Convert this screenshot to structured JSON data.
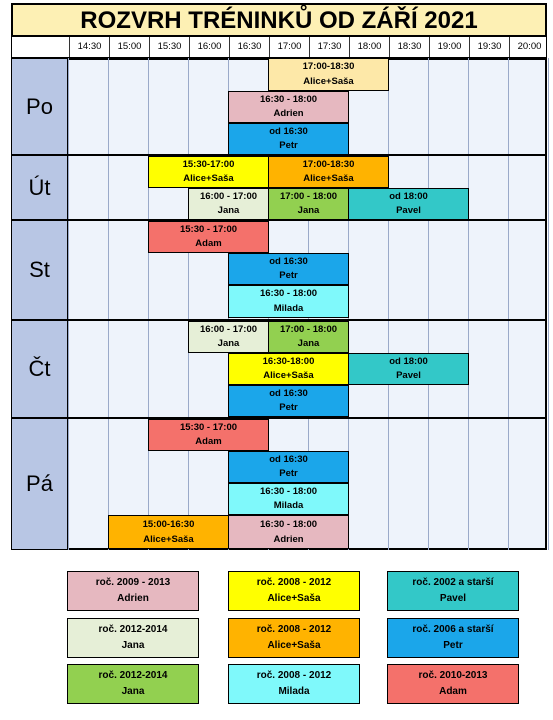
{
  "title": "ROZVRH TRÉNINKŮ OD ZÁŘÍ 2021",
  "times": [
    "14:30",
    "15:00",
    "15:30",
    "16:00",
    "16:30",
    "17:00",
    "17:30",
    "18:00",
    "18:30",
    "19:00",
    "19:30",
    "20:00"
  ],
  "days": [
    {
      "name": "Po",
      "blocks": [
        {
          "time": "17:00-18:30",
          "who": "Alice+Saša",
          "color": "#fde8a8"
        },
        {
          "time": "16:30 - 18:00",
          "who": "Adrien",
          "color": "#e6b8c0"
        },
        {
          "time": "od 16:30",
          "who": "Petr",
          "color": "#1ba6ea"
        }
      ]
    },
    {
      "name": "Út",
      "blocks": [
        {
          "time": "15:30-17:00",
          "who": "Alice+Saša",
          "color": "#ffff00"
        },
        {
          "time": "17:00-18:30",
          "who": "Alice+Saša",
          "color": "#ffb300"
        },
        {
          "time": "16:00 - 17:00",
          "who": "Jana",
          "color": "#e6efd7"
        },
        {
          "time": "17:00 - 18:00",
          "who": "Jana",
          "color": "#92d050"
        },
        {
          "time": "od 18:00",
          "who": "Pavel",
          "color": "#33c8c8"
        }
      ]
    },
    {
      "name": "St",
      "blocks": [
        {
          "time": "15:30 - 17:00",
          "who": "Adam",
          "color": "#f4716b"
        },
        {
          "time": "od 16:30",
          "who": "Petr",
          "color": "#1ba6ea"
        },
        {
          "time": "16:30 - 18:00",
          "who": "Milada",
          "color": "#7ff9fb"
        }
      ]
    },
    {
      "name": "Čt",
      "blocks": [
        {
          "time": "16:00 - 17:00",
          "who": "Jana",
          "color": "#e6efd7"
        },
        {
          "time": "17:00 - 18:00",
          "who": "Jana",
          "color": "#92d050"
        },
        {
          "time": "16:30-18:00",
          "who": "Alice+Saša",
          "color": "#ffff00"
        },
        {
          "time": "od 18:00",
          "who": "Pavel",
          "color": "#33c8c8"
        },
        {
          "time": "od 16:30",
          "who": "Petr",
          "color": "#1ba6ea"
        }
      ]
    },
    {
      "name": "Pá",
      "blocks": [
        {
          "time": "15:30 - 17:00",
          "who": "Adam",
          "color": "#f4716b"
        },
        {
          "time": "od 16:30",
          "who": "Petr",
          "color": "#1ba6ea"
        },
        {
          "time": "16:30 - 18:00",
          "who": "Milada",
          "color": "#7ff9fb"
        },
        {
          "time": "15:00-16:30",
          "who": "Alice+Saša",
          "color": "#ffb300"
        },
        {
          "time": "16:30 - 18:00",
          "who": "Adrien",
          "color": "#e6b8c0"
        }
      ]
    }
  ],
  "legend": [
    {
      "line1": "roč. 2009 - 2013",
      "line2": "Adrien",
      "color": "#e6b8c0"
    },
    {
      "line1": "roč. 2008 - 2012",
      "line2": "Alice+Saša",
      "color": "#ffff00"
    },
    {
      "line1": "roč. 2002 a starší",
      "line2": "Pavel",
      "color": "#33c8c8"
    },
    {
      "line1": "roč. 2012-2014",
      "line2": "Jana",
      "color": "#e6efd7"
    },
    {
      "line1": "roč. 2008 - 2012",
      "line2": "Alice+Saša",
      "color": "#ffb300"
    },
    {
      "line1": "roč. 2006 a starší",
      "line2": "Petr",
      "color": "#1ba6ea"
    },
    {
      "line1": "roč. 2012-2014",
      "line2": "Jana",
      "color": "#92d050"
    },
    {
      "line1": "roč. 2008 - 2012",
      "line2": "Milada",
      "color": "#7ff9fb"
    },
    {
      "line1": "roč. 2010-2013",
      "line2": "Adam",
      "color": "#f4716b"
    }
  ]
}
